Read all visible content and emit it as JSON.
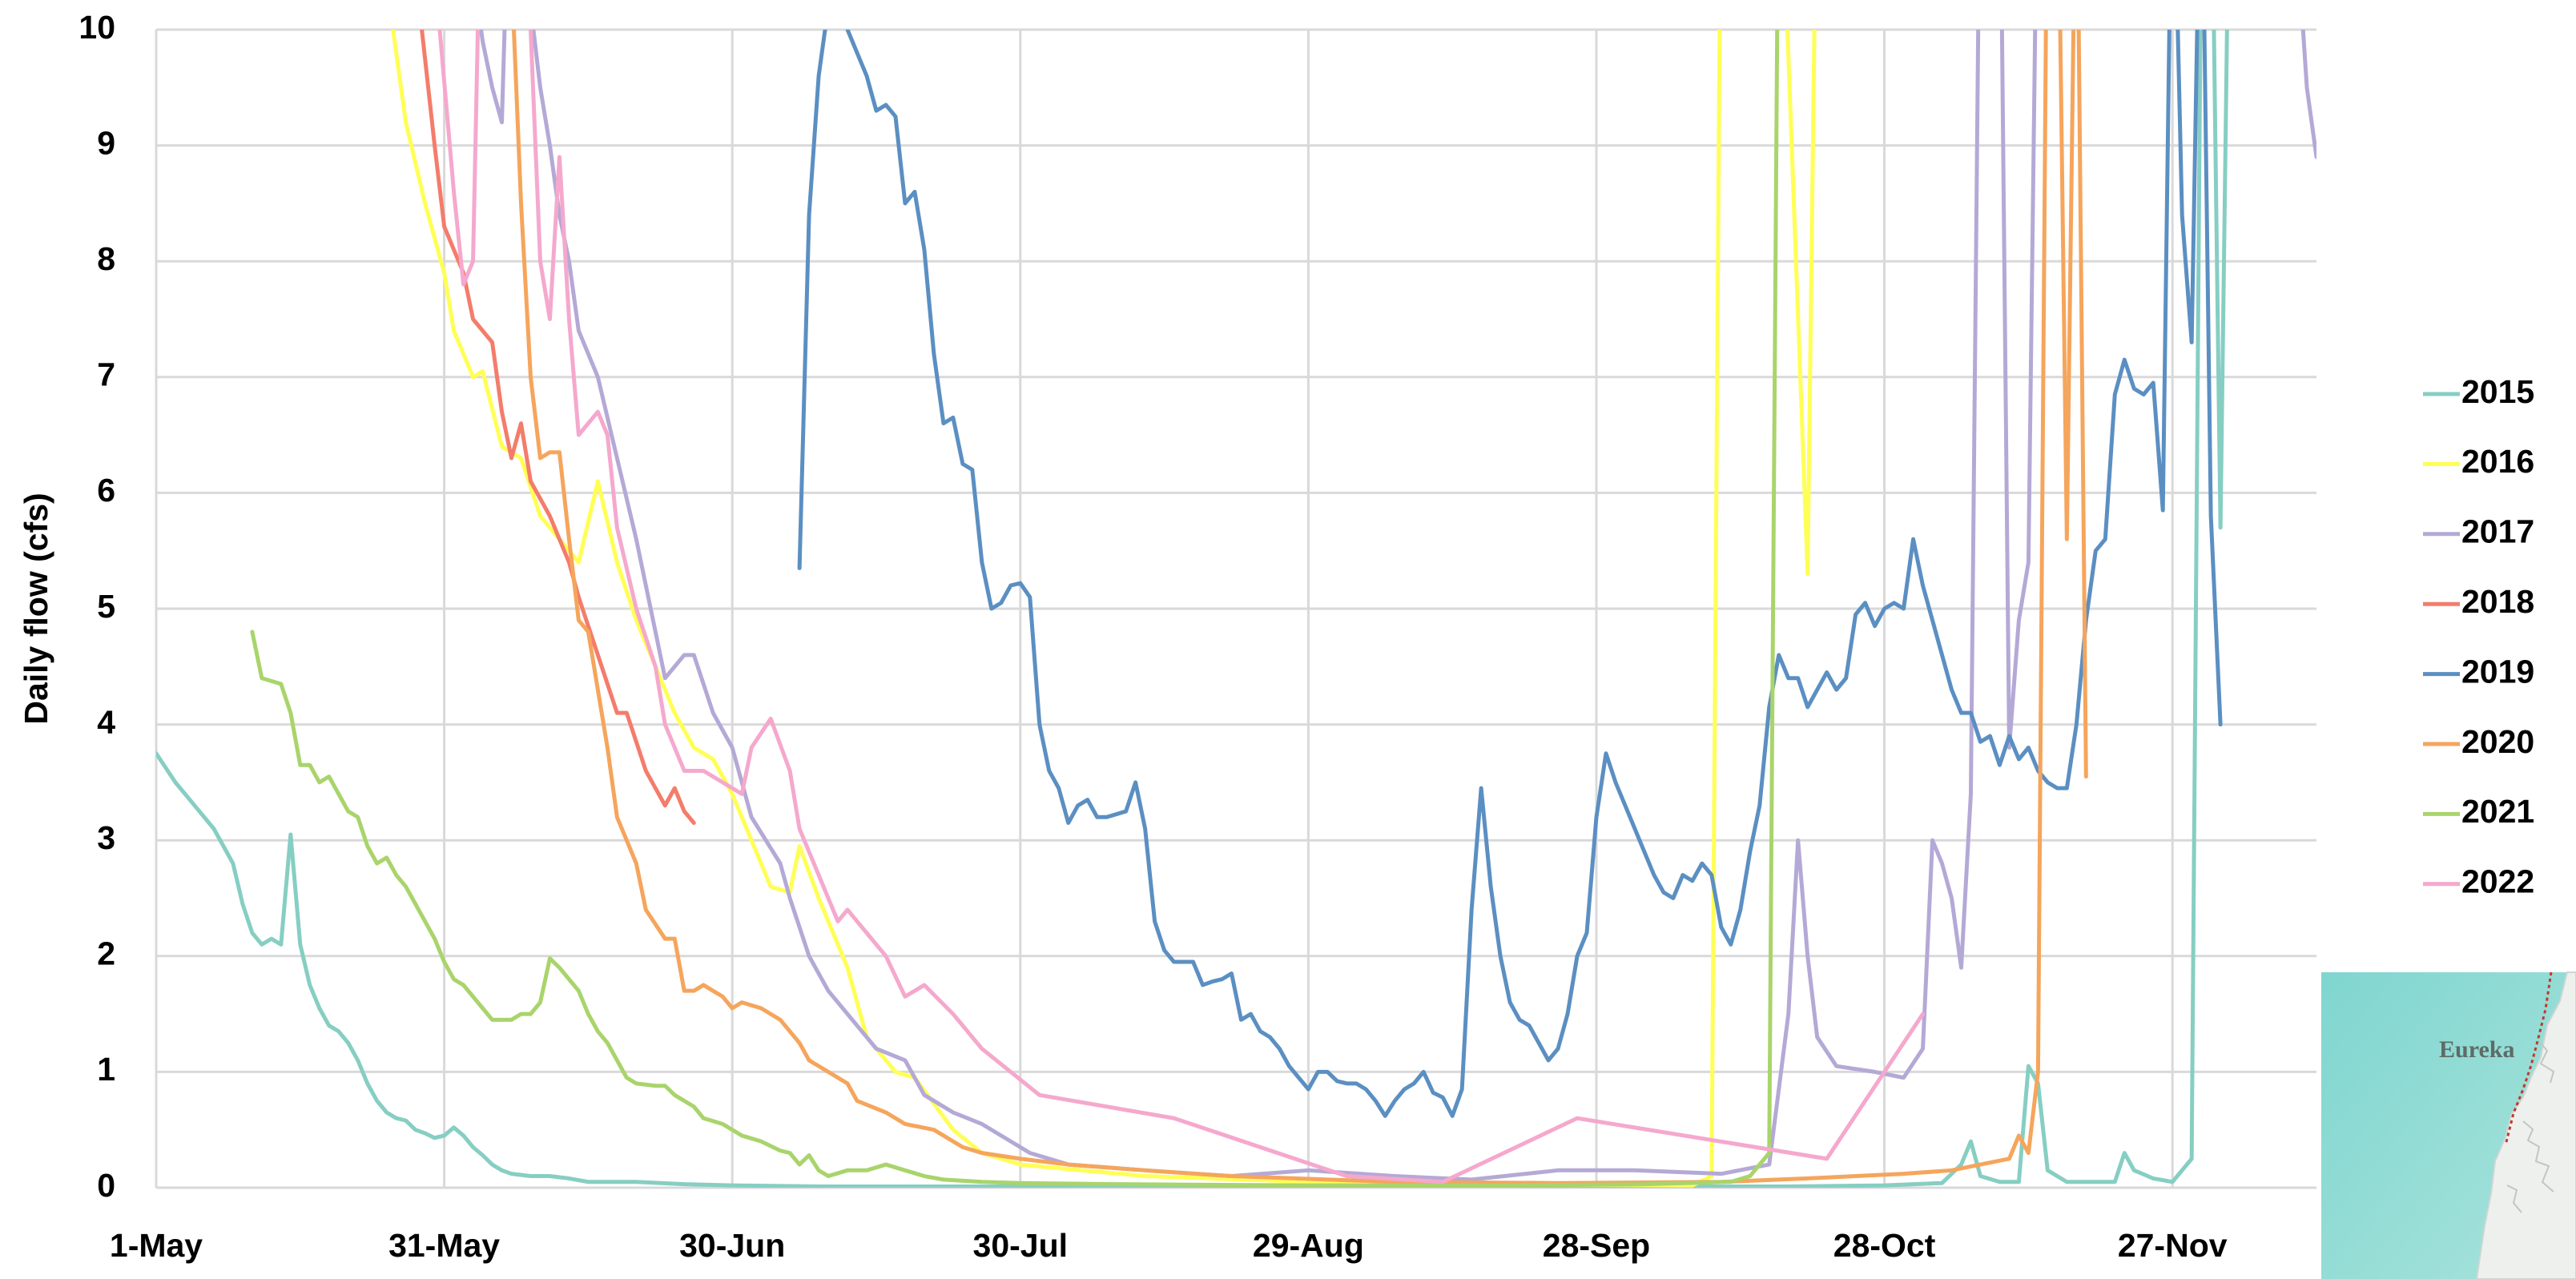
{
  "chart_data": {
    "type": "line",
    "y_label": "Daily flow (cfs)",
    "xlim": [
      0,
      225
    ],
    "xticks": [
      {
        "value": 0,
        "label": "1-May"
      },
      {
        "value": 30,
        "label": "31-May"
      },
      {
        "value": 60,
        "label": "30-Jun"
      },
      {
        "value": 90,
        "label": "30-Jul"
      },
      {
        "value": 120,
        "label": "29-Aug"
      },
      {
        "value": 150,
        "label": "28-Sep"
      },
      {
        "value": 180,
        "label": "28-Oct"
      },
      {
        "value": 210,
        "label": "27-Nov"
      }
    ],
    "ylim": [
      0,
      10
    ],
    "yticks": [
      0,
      1,
      2,
      3,
      4,
      5,
      6,
      7,
      8,
      9,
      10
    ],
    "grid": true,
    "legend": "right",
    "series": [
      {
        "name": "2015",
        "color": "#86cec3",
        "x": [
          0,
          2,
          4,
          6,
          8,
          9,
          10,
          11,
          12,
          13,
          14,
          15,
          16,
          17,
          18,
          19,
          20,
          21,
          22,
          23,
          24,
          25,
          26,
          27,
          28,
          29,
          30,
          31,
          32,
          33,
          34,
          35,
          36,
          37,
          39,
          41,
          43,
          45,
          50,
          55,
          60,
          70,
          100,
          140,
          170,
          180,
          186,
          188,
          189,
          190,
          192,
          194,
          195,
          196,
          197,
          199,
          204,
          205,
          206,
          208,
          210,
          212,
          213,
          214,
          215,
          216
        ],
        "values": [
          3.75,
          3.5,
          3.3,
          3.1,
          2.8,
          2.45,
          2.2,
          2.1,
          2.15,
          2.1,
          3.05,
          2.1,
          1.75,
          1.55,
          1.4,
          1.35,
          1.25,
          1.1,
          0.9,
          0.75,
          0.65,
          0.6,
          0.58,
          0.5,
          0.47,
          0.43,
          0.45,
          0.52,
          0.45,
          0.35,
          0.28,
          0.2,
          0.15,
          0.12,
          0.1,
          0.1,
          0.08,
          0.05,
          0.05,
          0.03,
          0.02,
          0.01,
          0.01,
          0.01,
          0.01,
          0.02,
          0.04,
          0.2,
          0.4,
          0.1,
          0.05,
          0.05,
          1.05,
          0.9,
          0.15,
          0.05,
          0.05,
          0.3,
          0.15,
          0.08,
          0.05,
          0.25,
          11,
          12,
          5.7,
          12
        ]
      },
      {
        "name": "2016",
        "color": "#ffff55",
        "x": [
          24,
          26,
          28,
          30,
          31,
          33,
          34,
          36,
          38,
          40,
          43,
          44,
          46,
          48,
          50,
          52,
          54,
          56,
          58,
          60,
          62,
          64,
          66,
          67,
          69,
          72,
          74,
          77,
          79,
          83,
          86,
          90,
          103,
          120,
          138,
          160,
          162,
          163,
          169,
          172,
          173
        ],
        "values": [
          10.4,
          9.2,
          8.5,
          7.9,
          7.4,
          7.0,
          7.05,
          6.4,
          6.3,
          5.8,
          5.5,
          5.4,
          6.1,
          5.4,
          4.9,
          4.5,
          4.1,
          3.8,
          3.7,
          3.4,
          3.0,
          2.6,
          2.55,
          2.95,
          2.5,
          1.9,
          1.3,
          1.0,
          0.95,
          0.5,
          0.3,
          0.2,
          0.1,
          0.05,
          0.03,
          0.02,
          0.1,
          12,
          12,
          5.3,
          12
        ]
      },
      {
        "name": "2017",
        "color": "#b4a9d6",
        "x": [
          33,
          34,
          35,
          36,
          37,
          38,
          39,
          40,
          41,
          42,
          43,
          44,
          46,
          48,
          50,
          52,
          53,
          55,
          56,
          58,
          60,
          62,
          65,
          66,
          68,
          70,
          73,
          75,
          78,
          80,
          83,
          86,
          89,
          91,
          95,
          103,
          112,
          120,
          129,
          137,
          146,
          154,
          163,
          168,
          170,
          171,
          172,
          173,
          175,
          179,
          182,
          184,
          185,
          186,
          187,
          188,
          189,
          190,
          192,
          193,
          194,
          195,
          196,
          222,
          224,
          225
        ],
        "values": [
          10.5,
          9.9,
          9.5,
          9.2,
          12,
          12,
          10.2,
          9.5,
          9.0,
          8.4,
          8.0,
          7.4,
          7.0,
          6.3,
          5.6,
          4.8,
          4.4,
          4.6,
          4.6,
          4.1,
          3.8,
          3.2,
          2.8,
          2.5,
          2.0,
          1.7,
          1.4,
          1.2,
          1.1,
          0.8,
          0.65,
          0.55,
          0.4,
          0.3,
          0.2,
          0.15,
          0.1,
          0.15,
          0.1,
          0.07,
          0.15,
          0.15,
          0.12,
          0.2,
          1.5,
          3.0,
          2.0,
          1.3,
          1.05,
          1.0,
          0.95,
          1.2,
          3.0,
          2.8,
          2.5,
          1.9,
          3.4,
          12,
          12,
          3.8,
          4.9,
          5.4,
          12,
          12,
          9.5,
          8.9
        ]
      },
      {
        "name": "2018",
        "color": "#f47c6b",
        "x": [
          27,
          29,
          30,
          32,
          33,
          35,
          36,
          37,
          38,
          39,
          41,
          43,
          44,
          46,
          48,
          49,
          51,
          53,
          54,
          55,
          56
        ],
        "values": [
          10.5,
          9.0,
          8.3,
          7.9,
          7.5,
          7.3,
          6.7,
          6.3,
          6.6,
          6.1,
          5.8,
          5.4,
          5.1,
          4.6,
          4.1,
          4.1,
          3.6,
          3.3,
          3.45,
          3.25,
          3.15
        ]
      },
      {
        "name": "2019",
        "color": "#5b8fc2",
        "x": [
          67,
          68,
          69,
          70,
          71,
          72,
          74,
          75,
          76,
          77,
          78,
          79,
          80,
          81,
          82,
          83,
          84,
          85,
          86,
          87,
          88,
          89,
          90,
          91,
          92,
          93,
          94,
          95,
          96,
          97,
          98,
          99,
          101,
          102,
          103,
          104,
          105,
          106,
          107,
          108,
          109,
          110,
          111,
          112,
          113,
          114,
          115,
          116,
          117,
          118,
          119,
          120,
          121,
          122,
          123,
          124,
          125,
          126,
          127,
          128,
          129,
          130,
          131,
          132,
          133,
          134,
          135,
          136,
          137,
          138,
          139,
          140,
          141,
          142,
          143,
          144,
          145,
          146,
          147,
          148,
          149,
          150,
          151,
          152,
          153,
          154,
          155,
          156,
          157,
          158,
          159,
          160,
          161,
          162,
          163,
          164,
          165,
          166,
          167,
          168,
          169,
          170,
          171,
          172,
          173,
          174,
          175,
          176,
          177,
          178,
          179,
          180,
          181,
          182,
          183,
          184,
          185,
          186,
          187,
          188,
          189,
          190,
          191,
          192,
          193,
          194,
          195,
          196,
          197,
          198,
          199,
          200,
          201,
          202,
          203,
          204,
          205,
          206,
          207,
          208,
          209,
          210,
          211,
          212,
          213,
          214,
          215
        ],
        "values": [
          5.35,
          8.4,
          9.6,
          10.2,
          10.5,
          10.0,
          9.6,
          9.3,
          9.35,
          9.25,
          8.5,
          8.6,
          8.1,
          7.2,
          6.6,
          6.65,
          6.25,
          6.2,
          5.4,
          5.0,
          5.05,
          5.2,
          5.22,
          5.1,
          4.0,
          3.6,
          3.45,
          3.15,
          3.3,
          3.35,
          3.2,
          3.2,
          3.25,
          3.5,
          3.1,
          2.3,
          2.05,
          1.95,
          1.95,
          1.95,
          1.75,
          1.78,
          1.8,
          1.85,
          1.45,
          1.5,
          1.35,
          1.3,
          1.2,
          1.05,
          0.95,
          0.85,
          1.0,
          1.0,
          0.92,
          0.9,
          0.9,
          0.85,
          0.75,
          0.62,
          0.75,
          0.85,
          0.9,
          1.0,
          0.82,
          0.78,
          0.62,
          0.85,
          2.4,
          3.45,
          2.6,
          2.0,
          1.6,
          1.45,
          1.4,
          1.25,
          1.1,
          1.2,
          1.5,
          2.0,
          2.2,
          3.2,
          3.75,
          3.5,
          3.3,
          3.1,
          2.9,
          2.7,
          2.55,
          2.5,
          2.7,
          2.65,
          2.8,
          2.7,
          2.25,
          2.1,
          2.4,
          2.9,
          3.3,
          4.15,
          4.6,
          4.4,
          4.4,
          4.15,
          4.3,
          4.45,
          4.3,
          4.4,
          4.95,
          5.05,
          4.85,
          5.0,
          5.05,
          5.0,
          5.6,
          5.2,
          4.9,
          4.6,
          4.3,
          4.1,
          4.1,
          3.85,
          3.9,
          3.65,
          3.9,
          3.7,
          3.8,
          3.6,
          3.5,
          3.45,
          3.45,
          4.0,
          4.9,
          5.5,
          5.6,
          6.85,
          7.15,
          6.9,
          6.85,
          6.95,
          5.85,
          12,
          8.4,
          7.3,
          12,
          5.8,
          4.0
        ]
      },
      {
        "name": "2020",
        "color": "#f5a55c",
        "x": [
          37,
          38,
          39,
          40,
          41,
          42,
          43,
          44,
          45,
          46,
          47,
          48,
          50,
          51,
          53,
          54,
          55,
          56,
          57,
          59,
          60,
          61,
          63,
          64,
          65,
          67,
          68,
          70,
          72,
          73,
          76,
          78,
          81,
          84,
          86,
          90,
          95,
          103,
          112,
          129,
          146,
          163,
          172,
          177,
          182,
          187,
          190,
          193,
          194,
          195,
          196,
          197,
          198,
          199,
          200,
          201
        ],
        "values": [
          10.5,
          8.5,
          7.0,
          6.3,
          6.35,
          6.35,
          5.6,
          4.9,
          4.8,
          4.3,
          3.8,
          3.2,
          2.8,
          2.4,
          2.15,
          2.15,
          1.7,
          1.7,
          1.75,
          1.65,
          1.55,
          1.6,
          1.55,
          1.5,
          1.45,
          1.25,
          1.1,
          1.0,
          0.9,
          0.75,
          0.65,
          0.55,
          0.5,
          0.35,
          0.3,
          0.25,
          0.2,
          0.15,
          0.1,
          0.05,
          0.04,
          0.05,
          0.08,
          0.1,
          0.12,
          0.15,
          0.2,
          0.25,
          0.45,
          0.3,
          1.0,
          12,
          12,
          5.6,
          12,
          3.55
        ]
      },
      {
        "name": "2021",
        "color": "#a9d46b",
        "x": [
          10,
          11,
          13,
          14,
          15,
          16,
          17,
          18,
          19,
          20,
          21,
          22,
          23,
          24,
          25,
          26,
          27,
          28,
          29,
          30,
          31,
          32,
          33,
          34,
          35,
          36,
          37,
          38,
          39,
          40,
          41,
          42,
          43,
          44,
          45,
          46,
          47,
          48,
          49,
          50,
          52,
          53,
          54,
          56,
          57,
          59,
          61,
          63,
          65,
          66,
          67,
          68,
          69,
          70,
          72,
          74,
          76,
          78,
          80,
          82,
          86,
          90,
          100,
          120,
          140,
          155,
          164,
          166,
          168,
          169
        ],
        "values": [
          4.8,
          4.4,
          4.35,
          4.1,
          3.65,
          3.65,
          3.5,
          3.55,
          3.4,
          3.25,
          3.2,
          2.95,
          2.8,
          2.85,
          2.7,
          2.6,
          2.45,
          2.3,
          2.15,
          1.95,
          1.8,
          1.75,
          1.65,
          1.55,
          1.45,
          1.45,
          1.45,
          1.5,
          1.5,
          1.6,
          1.98,
          1.9,
          1.8,
          1.7,
          1.5,
          1.35,
          1.25,
          1.1,
          0.95,
          0.9,
          0.88,
          0.88,
          0.8,
          0.7,
          0.6,
          0.55,
          0.45,
          0.4,
          0.32,
          0.3,
          0.2,
          0.28,
          0.15,
          0.1,
          0.15,
          0.15,
          0.2,
          0.15,
          0.1,
          0.07,
          0.05,
          0.04,
          0.03,
          0.02,
          0.02,
          0.03,
          0.05,
          0.1,
          0.3,
          12
        ]
      },
      {
        "name": "2022",
        "color": "#f5a8cd",
        "x": [
          29,
          31,
          32,
          33,
          34,
          38,
          39,
          40,
          41,
          42,
          43,
          44,
          46,
          47,
          48,
          50,
          52,
          53,
          55,
          57,
          59,
          61,
          62,
          64,
          66,
          67,
          69,
          71,
          72,
          74,
          76,
          78,
          80,
          83,
          86,
          92,
          106,
          124,
          134,
          148,
          174,
          184
        ],
        "values": [
          10.5,
          8.6,
          7.8,
          8.0,
          12,
          12,
          10,
          8.0,
          7.5,
          8.9,
          7.5,
          6.5,
          6.7,
          6.5,
          5.7,
          5.0,
          4.5,
          4.0,
          3.6,
          3.6,
          3.5,
          3.4,
          3.8,
          4.05,
          3.6,
          3.1,
          2.7,
          2.3,
          2.4,
          2.2,
          2.0,
          1.65,
          1.75,
          1.5,
          1.2,
          0.8,
          0.6,
          0.1,
          0.05,
          0.6,
          0.25,
          1.5
        ]
      }
    ]
  },
  "inset_map": {
    "label": "Eureka"
  }
}
